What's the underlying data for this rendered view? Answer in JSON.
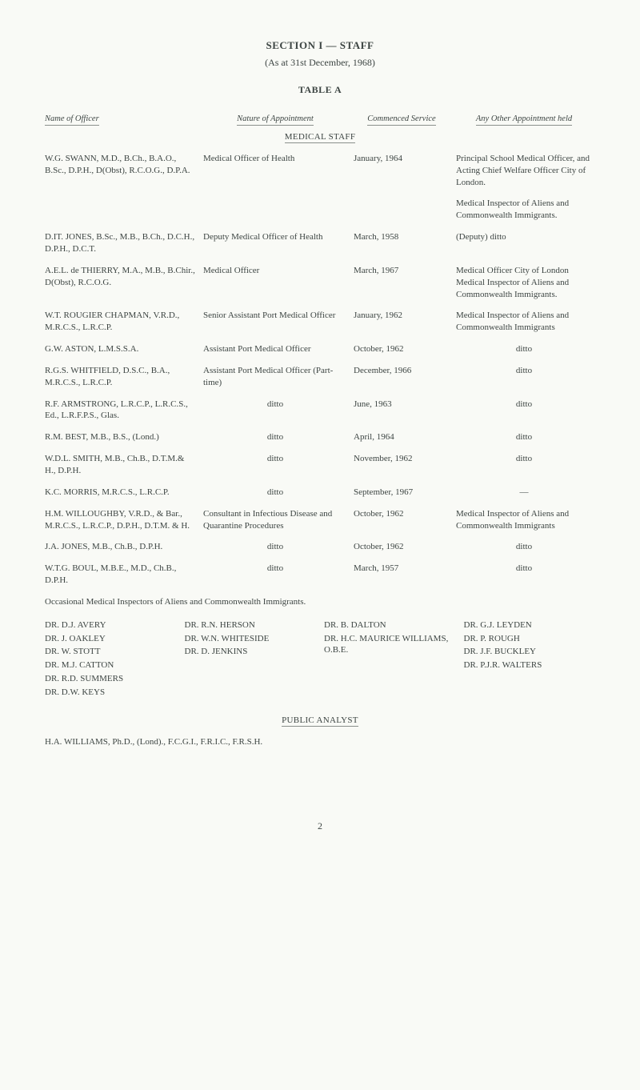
{
  "page": {
    "section_title": "SECTION I — STAFF",
    "subtitle": "(As at 31st December, 1968)",
    "table_title": "TABLE A",
    "page_number": "2"
  },
  "headers": {
    "c1": "Name of Officer",
    "c2": "Nature of Appointment",
    "c3": "Commenced Service",
    "c4": "Any Other Appointment held"
  },
  "subsection_medical": "MEDICAL STAFF",
  "rows": [
    {
      "name": "W.G. SWANN, M.D., B.Ch., B.A.O., B.Sc., D.P.H., D(Obst), R.C.O.G., D.P.A.",
      "appt": "Medical Officer of Health",
      "commenced": "January, 1964",
      "other": "Principal School Medical Officer, and Acting Chief Welfare Officer City of London."
    },
    {
      "name": "",
      "appt": "",
      "commenced": "",
      "other": "Medical Inspector of Aliens and Commonwealth Immigrants."
    },
    {
      "name": "D.IT. JONES, B.Sc., M.B., B.Ch., D.C.H., D.P.H., D.C.T.",
      "appt": "Deputy Medical Officer of Health",
      "commenced": "March, 1958",
      "other": "(Deputy) ditto"
    },
    {
      "name": "A.E.L. de THIERRY, M.A., M.B., B.Chir., D(Obst), R.C.O.G.",
      "appt": "Medical Officer",
      "commenced": "March, 1967",
      "other": "Medical Officer City of London Medical Inspector of Aliens and Commonwealth Immigrants."
    },
    {
      "name": "W.T. ROUGIER CHAPMAN, V.R.D., M.R.C.S., L.R.C.P.",
      "appt": "Senior Assistant Port Medical Officer",
      "commenced": "January, 1962",
      "other": "Medical Inspector of Aliens and Commonwealth Immigrants"
    },
    {
      "name": "G.W. ASTON, L.M.S.S.A.",
      "appt": "Assistant Port Medical Officer",
      "commenced": "October, 1962",
      "other": "ditto"
    },
    {
      "name": "R.G.S. WHITFIELD, D.S.C., B.A., M.R.C.S., L.R.C.P.",
      "appt": "Assistant Port Medical Officer (Part-time)",
      "commenced": "December, 1966",
      "other": "ditto"
    },
    {
      "name": "R.F. ARMSTRONG, L.R.C.P., L.R.C.S., Ed., L.R.F.P.S., Glas.",
      "appt": "ditto",
      "commenced": "June, 1963",
      "other": "ditto"
    },
    {
      "name": "R.M. BEST, M.B., B.S., (Lond.)",
      "appt": "ditto",
      "commenced": "April, 1964",
      "other": "ditto"
    },
    {
      "name": "W.D.L. SMITH, M.B., Ch.B., D.T.M.& H., D.P.H.",
      "appt": "ditto",
      "commenced": "November, 1962",
      "other": "ditto"
    },
    {
      "name": "K.C. MORRIS, M.R.C.S., L.R.C.P.",
      "appt": "ditto",
      "commenced": "September, 1967",
      "other": "—"
    },
    {
      "name": "H.M. WILLOUGHBY, V.R.D., & Bar., M.R.C.S., L.R.C.P., D.P.H., D.T.M. & H.",
      "appt": "Consultant in Infectious Disease and Quarantine Procedures",
      "commenced": "October, 1962",
      "other": "Medical Inspector of Aliens and Commonwealth Immigrants"
    },
    {
      "name": "J.A. JONES, M.B., Ch.B., D.P.H.",
      "appt": "ditto",
      "commenced": "October, 1962",
      "other": "ditto"
    },
    {
      "name": "W.T.G. BOUL, M.B.E., M.D., Ch.B., D.P.H.",
      "appt": "ditto",
      "commenced": "March, 1957",
      "other": "ditto"
    }
  ],
  "occasional": {
    "title": "Occasional Medical Inspectors of Aliens and Commonwealth Immigrants.",
    "cols": [
      [
        "DR. D.J. AVERY",
        "DR. J. OAKLEY",
        "DR. W. STOTT",
        "DR. M.J. CATTON",
        "DR. R.D. SUMMERS",
        "DR. D.W. KEYS"
      ],
      [
        "DR. R.N. HERSON",
        "DR. W.N. WHITESIDE",
        "DR. D. JENKINS"
      ],
      [
        "DR. B. DALTON",
        "DR. H.C. MAURICE WILLIAMS, O.B.E."
      ],
      [
        "DR. G.J. LEYDEN",
        "DR. P. ROUGH",
        "DR. J.F. BUCKLEY",
        "DR. P.J.R. WALTERS"
      ]
    ]
  },
  "public_analyst": {
    "heading": "PUBLIC ANALYST",
    "line": "H.A. WILLIAMS, Ph.D., (Lond)., F.C.G.I., F.R.I.C., F.R.S.H."
  }
}
